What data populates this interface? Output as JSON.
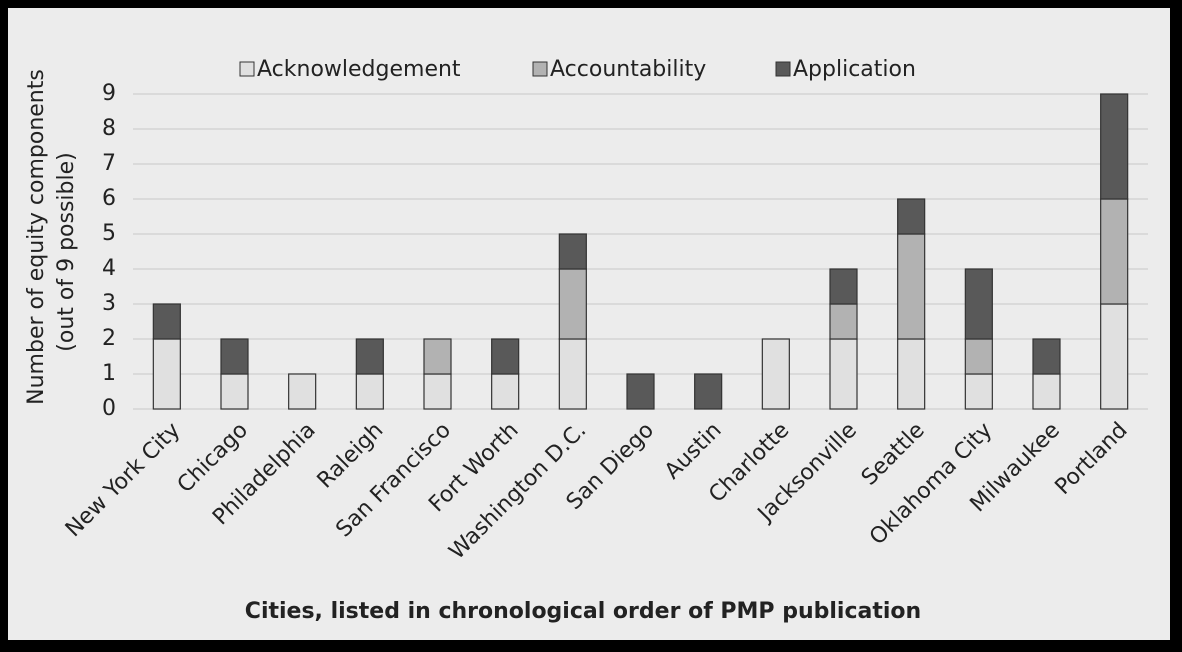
{
  "chart_data": {
    "type": "stacked_bar",
    "y_label": [
      "Number of equity components",
      "(out of 9 possible)"
    ],
    "x_label": "Cities, listed in chronological order of PMP publication",
    "categories": [
      "New York City",
      "Chicago",
      "Philadelphia",
      "Raleigh",
      "San Francisco",
      "Fort Worth",
      "Washington D.C.",
      "San Diego",
      "Austin",
      "Charlotte",
      "Jacksonville",
      "Seattle",
      "Oklahoma City",
      "Milwaukee",
      "Portland"
    ],
    "series": [
      {
        "name": "Acknowledgement",
        "color": "#e0e0e0",
        "values": [
          2,
          1,
          1,
          1,
          1,
          1,
          2,
          0,
          0,
          2,
          2,
          2,
          1,
          1,
          3
        ]
      },
      {
        "name": "Accountability",
        "color": "#b2b2b2",
        "values": [
          0,
          0,
          0,
          0,
          1,
          0,
          2,
          0,
          0,
          0,
          1,
          3,
          1,
          0,
          3
        ]
      },
      {
        "name": "Application",
        "color": "#595959",
        "values": [
          1,
          1,
          0,
          1,
          0,
          1,
          1,
          1,
          1,
          0,
          1,
          1,
          2,
          1,
          3
        ]
      }
    ],
    "ylim": [
      0,
      9
    ],
    "yticks": [
      0,
      1,
      2,
      3,
      4,
      5,
      6,
      7,
      8,
      9
    ],
    "grid": true,
    "legend": "top"
  }
}
